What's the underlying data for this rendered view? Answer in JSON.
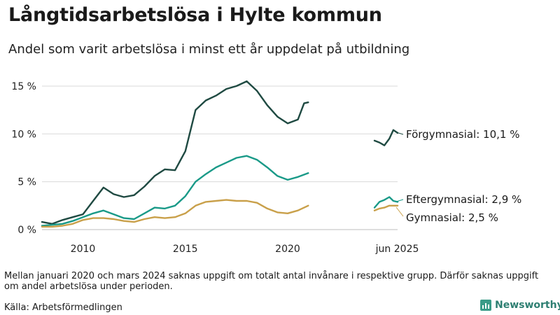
{
  "header": {
    "title": "Långtidsarbetslösa i Hylte kommun",
    "subtitle": "Andel som varit arbetslösa i minst ett år uppdelat på utbildning"
  },
  "footer": {
    "note": "Mellan januari 2020 och mars 2024 saknas uppgift om totalt antal invånare i respektive grupp. Därför saknas uppgift om andel arbetslösa under perioden.",
    "source": "Källa: Arbetsförmedlingen",
    "logo_text": "Newsworthy"
  },
  "chart_data": {
    "type": "line",
    "title": "Långtidsarbetslösa i Hylte kommun",
    "subtitle": "Andel som varit arbetslösa i minst ett år uppdelat på utbildning",
    "xlabel": "",
    "ylabel": "",
    "x_ticks": [
      "2010",
      "2015",
      "2020",
      "jun 2025"
    ],
    "y_ticks": [
      "0 %",
      "5 %",
      "10 %",
      "15 %"
    ],
    "ylim": [
      0,
      16
    ],
    "grid": "horizontal",
    "x_note": "Axis has a gap between end of 2020 and 2024.",
    "series": [
      {
        "name": "Förgymnasial",
        "end_label": "Förgymnasial: 10,1 %",
        "color": "#1f4a42",
        "segments": [
          [
            [
              2008.0,
              0.8
            ],
            [
              2008.5,
              0.6
            ],
            [
              2009.0,
              1.0
            ],
            [
              2009.5,
              1.3
            ],
            [
              2010.0,
              1.6
            ],
            [
              2010.5,
              3.0
            ],
            [
              2011.0,
              4.4
            ],
            [
              2011.5,
              3.7
            ],
            [
              2012.0,
              3.4
            ],
            [
              2012.5,
              3.6
            ],
            [
              2013.0,
              4.5
            ],
            [
              2013.5,
              5.6
            ],
            [
              2014.0,
              6.3
            ],
            [
              2014.5,
              6.2
            ],
            [
              2015.0,
              8.2
            ],
            [
              2015.5,
              12.5
            ],
            [
              2016.0,
              13.5
            ],
            [
              2016.5,
              14.0
            ],
            [
              2017.0,
              14.7
            ],
            [
              2017.5,
              15.0
            ],
            [
              2018.0,
              15.5
            ],
            [
              2018.5,
              14.5
            ],
            [
              2019.0,
              13.0
            ],
            [
              2019.5,
              11.8
            ],
            [
              2020.0,
              11.1
            ],
            [
              2020.5,
              11.5
            ],
            [
              2020.8,
              13.2
            ],
            [
              2021.0,
              13.3
            ]
          ],
          [
            [
              2024.25,
              9.3
            ],
            [
              2024.5,
              9.1
            ],
            [
              2024.75,
              8.8
            ],
            [
              2025.0,
              9.5
            ],
            [
              2025.2,
              10.4
            ],
            [
              2025.42,
              10.1
            ]
          ]
        ]
      },
      {
        "name": "Eftergymnasial",
        "end_label": "Eftergymnasial:  2,9 %",
        "color": "#1a9a88",
        "segments": [
          [
            [
              2008.0,
              0.4
            ],
            [
              2008.5,
              0.5
            ],
            [
              2009.0,
              0.6
            ],
            [
              2009.5,
              0.9
            ],
            [
              2010.0,
              1.3
            ],
            [
              2010.5,
              1.7
            ],
            [
              2011.0,
              2.0
            ],
            [
              2011.5,
              1.6
            ],
            [
              2012.0,
              1.2
            ],
            [
              2012.5,
              1.1
            ],
            [
              2013.0,
              1.7
            ],
            [
              2013.5,
              2.3
            ],
            [
              2014.0,
              2.2
            ],
            [
              2014.5,
              2.5
            ],
            [
              2015.0,
              3.5
            ],
            [
              2015.5,
              5.0
            ],
            [
              2016.0,
              5.8
            ],
            [
              2016.5,
              6.5
            ],
            [
              2017.0,
              7.0
            ],
            [
              2017.5,
              7.5
            ],
            [
              2018.0,
              7.7
            ],
            [
              2018.5,
              7.3
            ],
            [
              2019.0,
              6.5
            ],
            [
              2019.5,
              5.6
            ],
            [
              2020.0,
              5.2
            ],
            [
              2020.5,
              5.5
            ],
            [
              2021.0,
              5.9
            ]
          ],
          [
            [
              2024.25,
              2.3
            ],
            [
              2024.5,
              2.9
            ],
            [
              2024.75,
              3.1
            ],
            [
              2025.0,
              3.4
            ],
            [
              2025.2,
              3.0
            ],
            [
              2025.42,
              2.9
            ]
          ]
        ]
      },
      {
        "name": "Gymnasial",
        "end_label": "Gymnasial:  2,5 %",
        "color": "#c9a04a",
        "segments": [
          [
            [
              2008.0,
              0.3
            ],
            [
              2008.5,
              0.3
            ],
            [
              2009.0,
              0.4
            ],
            [
              2009.5,
              0.6
            ],
            [
              2010.0,
              1.0
            ],
            [
              2010.5,
              1.2
            ],
            [
              2011.0,
              1.2
            ],
            [
              2011.5,
              1.1
            ],
            [
              2012.0,
              0.9
            ],
            [
              2012.5,
              0.8
            ],
            [
              2013.0,
              1.1
            ],
            [
              2013.5,
              1.3
            ],
            [
              2014.0,
              1.2
            ],
            [
              2014.5,
              1.3
            ],
            [
              2015.0,
              1.7
            ],
            [
              2015.5,
              2.5
            ],
            [
              2016.0,
              2.9
            ],
            [
              2016.5,
              3.0
            ],
            [
              2017.0,
              3.1
            ],
            [
              2017.5,
              3.0
            ],
            [
              2018.0,
              3.0
            ],
            [
              2018.5,
              2.8
            ],
            [
              2019.0,
              2.2
            ],
            [
              2019.5,
              1.8
            ],
            [
              2020.0,
              1.7
            ],
            [
              2020.5,
              2.0
            ],
            [
              2021.0,
              2.5
            ]
          ],
          [
            [
              2024.25,
              2.0
            ],
            [
              2024.5,
              2.2
            ],
            [
              2024.75,
              2.3
            ],
            [
              2025.0,
              2.5
            ],
            [
              2025.2,
              2.5
            ],
            [
              2025.42,
              2.5
            ]
          ]
        ]
      }
    ]
  }
}
